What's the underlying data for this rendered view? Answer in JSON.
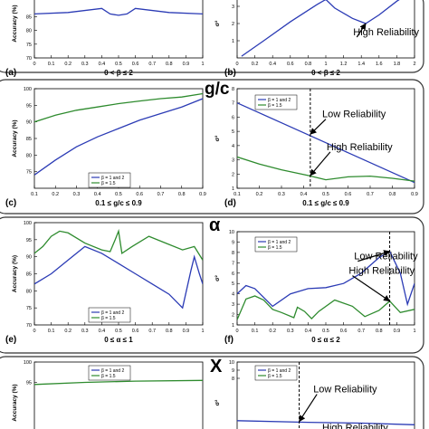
{
  "section_labels": [
    "g/c",
    "α",
    "X"
  ],
  "chart_data": [
    {
      "id": "a",
      "type": "line",
      "panel_label": "(a)",
      "xlabel": "0 < β ≤ 2",
      "ylabel": "Accuracy (%)",
      "xlim": [
        0,
        1
      ],
      "ylim": [
        70,
        95
      ],
      "xticks": [
        "0",
        "0.1",
        "0.2",
        "0.3",
        "0.4",
        "0.5",
        "0.6",
        "0.7",
        "0.8",
        "0.9",
        "1"
      ],
      "yticks": [
        "70",
        "75",
        "80",
        "85"
      ],
      "legend": [],
      "series": [
        {
          "name": "",
          "color": "#2b3bb5",
          "points": [
            [
              0,
              86
            ],
            [
              0.2,
              86.5
            ],
            [
              0.4,
              88
            ],
            [
              0.45,
              86
            ],
            [
              0.5,
              85.5
            ],
            [
              0.55,
              86
            ],
            [
              0.6,
              88
            ],
            [
              0.8,
              86.5
            ],
            [
              1,
              86
            ]
          ]
        }
      ],
      "annotations": []
    },
    {
      "id": "b",
      "type": "line",
      "panel_label": "(b)",
      "xlabel": "0 < β ≤ 2",
      "ylabel": "σ²",
      "xlim": [
        0,
        2
      ],
      "ylim": [
        0,
        4
      ],
      "xticks": [
        "0",
        "0.2",
        "0.4",
        "0.6",
        "0.8",
        "1",
        "1.2",
        "1.4",
        "1.6",
        "1.8",
        "2"
      ],
      "yticks": [
        "1",
        "2",
        "3"
      ],
      "legend": [],
      "series": [
        {
          "name": "",
          "color": "#2b3bb5",
          "points": [
            [
              0.05,
              0.1
            ],
            [
              0.3,
              1
            ],
            [
              0.6,
              2.1
            ],
            [
              0.9,
              3.1
            ],
            [
              1.0,
              3.4
            ],
            [
              1.1,
              2.9
            ],
            [
              1.3,
              2.3
            ],
            [
              1.45,
              2.0
            ],
            [
              1.6,
              2.5
            ],
            [
              1.8,
              3.3
            ],
            [
              1.95,
              3.8
            ]
          ]
        }
      ],
      "annotations": [
        {
          "text": "High Reliability",
          "x": 1.45,
          "y": 2.0,
          "tx": 1.35,
          "ty": 1.0
        }
      ]
    },
    {
      "id": "c",
      "type": "line",
      "panel_label": "(c)",
      "xlabel": "0.1 ≤ g/c ≤ 0.9",
      "ylabel": "Accuracy (%)",
      "xlim": [
        0.1,
        0.9
      ],
      "ylim": [
        70,
        100
      ],
      "xticks": [
        "0.1",
        "0.2",
        "0.3",
        "0.4",
        "0.5",
        "0.6",
        "0.7",
        "0.8",
        "0.9"
      ],
      "yticks": [
        "75",
        "80",
        "85",
        "90",
        "95",
        "100"
      ],
      "legend": [
        "β = 1 and 2",
        "β = 1.5"
      ],
      "series": [
        {
          "name": "β = 1 and 2",
          "color": "#2b3bb5",
          "points": [
            [
              0.1,
              74
            ],
            [
              0.2,
              78.5
            ],
            [
              0.3,
              82.5
            ],
            [
              0.4,
              85.5
            ],
            [
              0.5,
              88
            ],
            [
              0.6,
              90.5
            ],
            [
              0.7,
              92.5
            ],
            [
              0.8,
              94.5
            ],
            [
              0.9,
              97
            ]
          ]
        },
        {
          "name": "β = 1.5",
          "color": "#2e8b2e",
          "points": [
            [
              0.1,
              90
            ],
            [
              0.2,
              92
            ],
            [
              0.3,
              93.5
            ],
            [
              0.4,
              94.5
            ],
            [
              0.5,
              95.5
            ],
            [
              0.6,
              96.3
            ],
            [
              0.7,
              97
            ],
            [
              0.8,
              97.5
            ],
            [
              0.9,
              98.5
            ]
          ]
        }
      ],
      "annotations": []
    },
    {
      "id": "d",
      "type": "line",
      "panel_label": "(d)",
      "xlabel": "0.1 ≤ g/c ≤ 0.9",
      "ylabel": "σ²",
      "xlim": [
        0.1,
        0.9
      ],
      "ylim": [
        1,
        8
      ],
      "xticks": [
        "0.1",
        "0.2",
        "0.3",
        "0.4",
        "0.5",
        "0.6",
        "0.7",
        "0.8",
        "0.9"
      ],
      "yticks": [
        "1",
        "2",
        "3",
        "4",
        "5",
        "6",
        "7",
        "8"
      ],
      "legend": [
        "β = 1 and 2",
        "β = 1.5"
      ],
      "series": [
        {
          "name": "β = 1 and 2",
          "color": "#2b3bb5",
          "points": [
            [
              0.1,
              7.0
            ],
            [
              0.2,
              6.3
            ],
            [
              0.3,
              5.6
            ],
            [
              0.4,
              4.9
            ],
            [
              0.5,
              4.2
            ],
            [
              0.6,
              3.5
            ],
            [
              0.7,
              2.8
            ],
            [
              0.8,
              2.1
            ],
            [
              0.9,
              1.4
            ]
          ]
        },
        {
          "name": "β = 1.5",
          "color": "#2e8b2e",
          "points": [
            [
              0.1,
              3.2
            ],
            [
              0.2,
              2.7
            ],
            [
              0.3,
              2.3
            ],
            [
              0.42,
              1.9
            ],
            [
              0.5,
              1.6
            ],
            [
              0.6,
              1.8
            ],
            [
              0.7,
              1.85
            ],
            [
              0.8,
              1.7
            ],
            [
              0.9,
              1.5
            ]
          ]
        }
      ],
      "annotations": [
        {
          "text": "Low Reliability",
          "x": 0.43,
          "y": 4.8,
          "tx": 0.5,
          "ty": 5.6
        },
        {
          "text": "High Reliability",
          "x": 0.43,
          "y": 1.9,
          "tx": 0.52,
          "ty": 3.3
        }
      ],
      "vline": 0.43
    },
    {
      "id": "e",
      "type": "line",
      "panel_label": "(e)",
      "xlabel": "0 ≤ α ≤ 1",
      "ylabel": "Accuracy (%)",
      "xlim": [
        0,
        1
      ],
      "ylim": [
        70,
        100
      ],
      "xticks": [
        "0",
        "0.1",
        "0.2",
        "0.3",
        "0.4",
        "0.5",
        "0.6",
        "0.7",
        "0.8",
        "0.9",
        "1"
      ],
      "yticks": [
        "70",
        "75",
        "80",
        "85",
        "90",
        "95",
        "100"
      ],
      "legend": [
        "β = 1 and 2",
        "β = 1.5"
      ],
      "series": [
        {
          "name": "β = 1 and 2",
          "color": "#2b3bb5",
          "points": [
            [
              0,
              82
            ],
            [
              0.1,
              85
            ],
            [
              0.2,
              89
            ],
            [
              0.3,
              93
            ],
            [
              0.4,
              91
            ],
            [
              0.5,
              88
            ],
            [
              0.6,
              85
            ],
            [
              0.7,
              82
            ],
            [
              0.8,
              79
            ],
            [
              0.88,
              75
            ],
            [
              0.93,
              86
            ],
            [
              0.95,
              90
            ],
            [
              0.98,
              85
            ],
            [
              1,
              82
            ]
          ]
        },
        {
          "name": "β = 1.5",
          "color": "#2e8b2e",
          "points": [
            [
              0,
              91
            ],
            [
              0.05,
              93
            ],
            [
              0.1,
              96
            ],
            [
              0.15,
              97.5
            ],
            [
              0.2,
              97
            ],
            [
              0.3,
              94
            ],
            [
              0.4,
              92
            ],
            [
              0.45,
              91.5
            ],
            [
              0.48,
              95
            ],
            [
              0.5,
              97.5
            ],
            [
              0.52,
              91
            ],
            [
              0.58,
              93
            ],
            [
              0.68,
              96
            ],
            [
              0.78,
              94
            ],
            [
              0.88,
              92
            ],
            [
              0.95,
              93
            ],
            [
              1,
              89
            ]
          ]
        }
      ],
      "annotations": []
    },
    {
      "id": "f",
      "type": "line",
      "panel_label": "(f)",
      "xlabel": "0 ≤ α ≤ 2",
      "ylabel": "σ²",
      "xlim": [
        0,
        1
      ],
      "ylim": [
        1,
        10
      ],
      "xticks": [
        "0",
        "0.1",
        "0.2",
        "0.3",
        "0.4",
        "0.5",
        "0.6",
        "0.7",
        "0.8",
        "0.9",
        "1"
      ],
      "yticks": [
        "1",
        "2",
        "3",
        "4",
        "5",
        "6",
        "7",
        "8",
        "9",
        "10"
      ],
      "legend": [
        "β = 1 and 2",
        "β = 1.5"
      ],
      "series": [
        {
          "name": "β = 1 and 2",
          "color": "#2b3bb5",
          "points": [
            [
              0,
              4
            ],
            [
              0.05,
              4.8
            ],
            [
              0.1,
              4.5
            ],
            [
              0.2,
              2.8
            ],
            [
              0.3,
              4
            ],
            [
              0.4,
              4.5
            ],
            [
              0.5,
              4.6
            ],
            [
              0.6,
              5
            ],
            [
              0.7,
              6
            ],
            [
              0.8,
              7.5
            ],
            [
              0.86,
              8.1
            ],
            [
              0.92,
              6
            ],
            [
              0.96,
              3
            ],
            [
              1,
              5
            ]
          ]
        },
        {
          "name": "β = 1.5",
          "color": "#2e8b2e",
          "points": [
            [
              0,
              1.5
            ],
            [
              0.05,
              3.5
            ],
            [
              0.1,
              3.8
            ],
            [
              0.15,
              3.4
            ],
            [
              0.2,
              2.5
            ],
            [
              0.25,
              2.2
            ],
            [
              0.32,
              1.7
            ],
            [
              0.34,
              2.7
            ],
            [
              0.38,
              2.3
            ],
            [
              0.42,
              1.6
            ],
            [
              0.46,
              2.3
            ],
            [
              0.55,
              3.4
            ],
            [
              0.65,
              2.8
            ],
            [
              0.72,
              1.8
            ],
            [
              0.8,
              2.4
            ],
            [
              0.86,
              3.3
            ],
            [
              0.92,
              2.2
            ],
            [
              1,
              2.5
            ]
          ]
        }
      ],
      "annotations": [
        {
          "text": "Low Reliability",
          "x": 0.86,
          "y": 8.1,
          "tx": 0.68,
          "ty": 6.8
        },
        {
          "text": "High Reliability",
          "x": 0.86,
          "y": 3.3,
          "tx": 0.65,
          "ty": 5.4
        }
      ],
      "vline": 0.86
    },
    {
      "id": "g",
      "type": "line",
      "panel_label": "",
      "xlabel": "",
      "ylabel": "Accuracy (%)",
      "xlim": [
        0,
        1
      ],
      "ylim": [
        80,
        100
      ],
      "xticks": [],
      "yticks": [
        "95",
        "100"
      ],
      "legend": [
        "β = 1 and 2",
        "β = 1.5"
      ],
      "series": [
        {
          "name": "β = 1 and 2",
          "color": "#2b3bb5",
          "points": [
            [
              0,
              81.5
            ],
            [
              0.3,
              81.8
            ],
            [
              0.6,
              82.2
            ],
            [
              1,
              82.3
            ]
          ]
        },
        {
          "name": "β = 1.5",
          "color": "#2e8b2e",
          "points": [
            [
              0,
              94.5
            ],
            [
              0.3,
              95
            ],
            [
              0.6,
              95.3
            ],
            [
              1,
              95.5
            ]
          ]
        }
      ],
      "annotations": []
    },
    {
      "id": "h",
      "type": "line",
      "panel_label": "",
      "xlabel": "",
      "ylabel": "σ²",
      "xlim": [
        0,
        1
      ],
      "ylim": [
        0,
        10
      ],
      "xticks": [],
      "yticks": [
        "8",
        "9",
        "10"
      ],
      "legend": [
        "β = 1 and 2",
        "β = 1.5"
      ],
      "series": [
        {
          "name": "β = 1 and 2",
          "color": "#2b3bb5",
          "points": [
            [
              0,
              2.8
            ],
            [
              0.4,
              2.6
            ],
            [
              0.7,
              2.5
            ],
            [
              1,
              2.3
            ]
          ]
        }
      ],
      "annotations": [
        {
          "text": "Low Reliability",
          "x": 0.35,
          "y": 2.7,
          "tx": 0.45,
          "ty": 5.6
        },
        {
          "text": "High Reliability",
          "x": 0.35,
          "y": 0.5,
          "tx": 0.5,
          "ty": 0.9
        }
      ],
      "vline": 0.35
    }
  ]
}
